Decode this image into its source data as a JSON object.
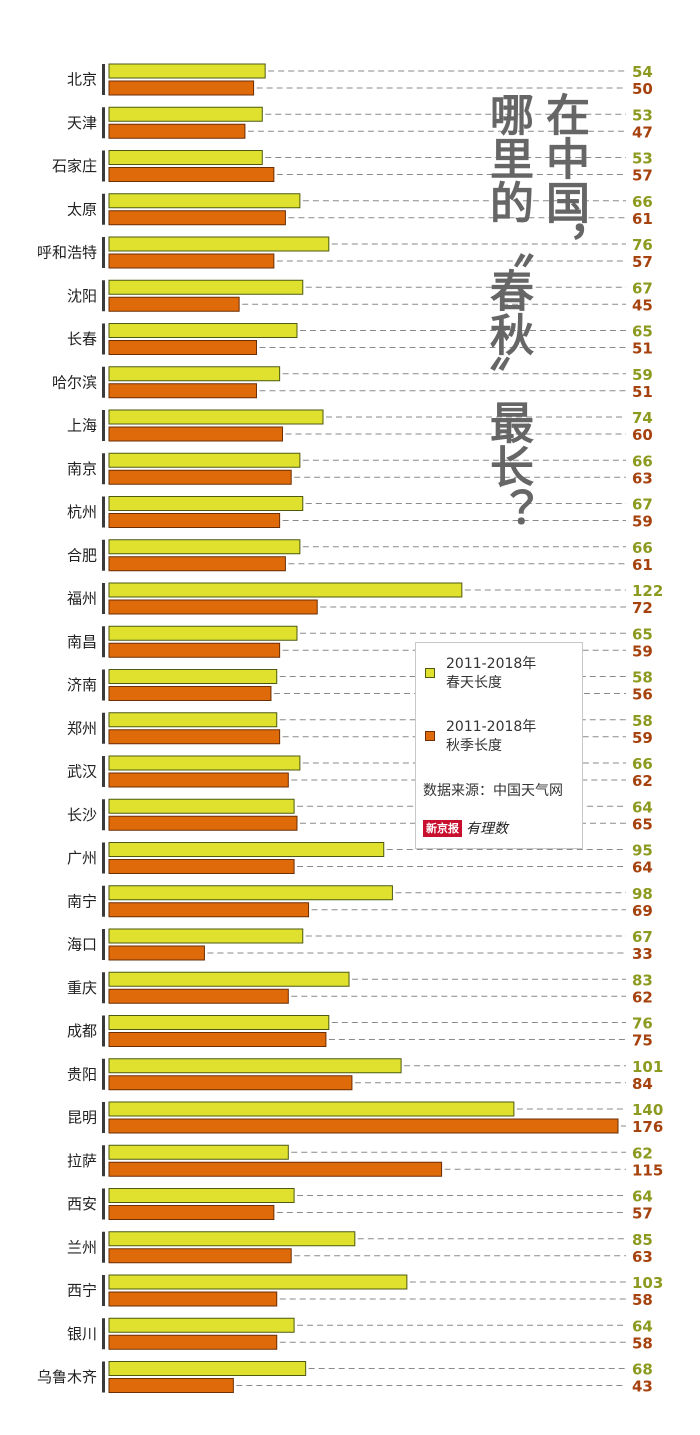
{
  "title": {
    "column_1": "在中国，",
    "column_2": "哪里的〝春秋〞最长？"
  },
  "legend": {
    "spring_label_line1": "2011-2018年",
    "spring_label_line2": "春天长度",
    "autumn_label_line1": "2011-2018年",
    "autumn_label_line2": "秋季长度",
    "source": "数据来源：中国天气网",
    "logo_badge": "新京报",
    "logo_script": "有理数"
  },
  "colors": {
    "spring_fill": "#dfe12e",
    "spring_border": "#4e5a12",
    "spring_value": "#8c9a1f",
    "autumn_fill": "#df6a0a",
    "autumn_border": "#6b2e05",
    "autumn_value": "#a6420e",
    "axis": "#3a3a3a",
    "dash": "#8a8a8a"
  },
  "chart_data": {
    "type": "bar",
    "orientation": "horizontal",
    "categories": [
      "北京",
      "天津",
      "石家庄",
      "太原",
      "呼和浩特",
      "沈阳",
      "长春",
      "哈尔滨",
      "上海",
      "南京",
      "杭州",
      "合肥",
      "福州",
      "南昌",
      "济南",
      "郑州",
      "武汉",
      "长沙",
      "广州",
      "南宁",
      "海口",
      "重庆",
      "成都",
      "贵阳",
      "昆明",
      "拉萨",
      "西安",
      "兰州",
      "西宁",
      "银川",
      "乌鲁木齐"
    ],
    "series": [
      {
        "name": "2011-2018年春天长度",
        "values": [
          54,
          53,
          53,
          66,
          76,
          67,
          65,
          59,
          74,
          66,
          67,
          66,
          122,
          65,
          58,
          58,
          66,
          64,
          95,
          98,
          67,
          83,
          76,
          101,
          140,
          62,
          64,
          85,
          103,
          64,
          68
        ]
      },
      {
        "name": "2011-2018年秋季长度",
        "values": [
          50,
          47,
          57,
          61,
          57,
          45,
          51,
          51,
          60,
          63,
          59,
          61,
          72,
          59,
          56,
          59,
          62,
          65,
          64,
          69,
          33,
          62,
          75,
          84,
          176,
          115,
          57,
          63,
          58,
          58,
          43
        ]
      }
    ],
    "xlim": [
      0,
      176
    ],
    "grid": false,
    "legend_position": "right-middle"
  }
}
